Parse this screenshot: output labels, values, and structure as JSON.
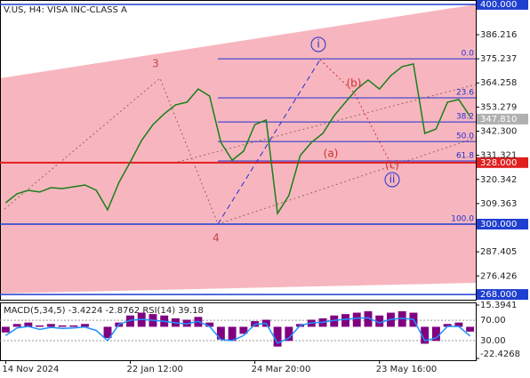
{
  "chart_data": [
    {
      "type": "line",
      "title": "V.US, H4:  VISA INC-CLASS A",
      "categories": [
        "14 Nov 2024",
        null,
        null,
        null,
        null,
        null,
        null,
        null,
        null,
        null,
        null,
        "22 Jan 12:00",
        null,
        null,
        null,
        null,
        null,
        null,
        null,
        null,
        null,
        null,
        "24 Mar 20:00",
        null,
        null,
        null,
        null,
        null,
        null,
        null,
        null,
        null,
        null,
        "23 May 16:00",
        null,
        null,
        null,
        null,
        null,
        null,
        null,
        null
      ],
      "values": [
        309.7,
        313.8,
        315.4,
        314.6,
        316.6,
        316.2,
        317.0,
        317.8,
        315.4,
        306.5,
        319.0,
        328.3,
        338.1,
        345.3,
        350.2,
        354.3,
        355.5,
        361.5,
        358.3,
        337.2,
        329.1,
        333.2,
        345.3,
        347.4,
        304.9,
        313.0,
        331.2,
        337.2,
        341.3,
        349.4,
        355.5,
        361.5,
        365.6,
        361.5,
        367.6,
        371.7,
        372.9,
        341.3,
        343.3,
        355.5,
        356.7,
        349.0
      ],
      "color": "#1a7f1a",
      "ylim": [
        265.6,
        402.0
      ],
      "yticks": [
        386.216,
        375.237,
        364.258,
        353.279,
        {
          "value": 342.3,
          "label": "342.300"
        },
        331.321,
        320.342,
        309.363,
        287.405,
        276.426
      ],
      "levels": [
        {
          "value": 400,
          "label": "400.000",
          "color": "#1f3fd0"
        },
        {
          "value": 328,
          "label": "328.000",
          "color": "#e02020"
        },
        {
          "value": 300,
          "label": "300.000",
          "color": "#1f3fd0"
        },
        {
          "value": 268,
          "label": "268.000",
          "color": "#1f3fd0"
        }
      ],
      "last_price": {
        "value": 347.81,
        "label": "347.810",
        "color": "#b0b0b0"
      },
      "fib_range": [
        300,
        375.237
      ],
      "fib_levels": [
        {
          "value": 0,
          "label": "0.0"
        },
        23.6,
        38.2,
        {
          "value": 50,
          "label": "50.0"
        },
        61.8,
        {
          "value": 100,
          "label": "100.0"
        }
      ],
      "fib_color": "#2030d0",
      "wave_labels": [
        "3",
        "4",
        "i",
        "(a)",
        "(b)",
        "(c)",
        "ii"
      ]
    },
    {
      "type": "macd",
      "title": "MACD(5,34,5) -3.4224 -2.8762 RSI(14) 39.18",
      "ylim": [
        -22.4268,
        15.3941
      ],
      "yticks": [
        15.3941,
        -22.4268
      ],
      "y2lim": [
        -5,
        100
      ],
      "y2ticks": [
        {
          "value": 70,
          "label": "70.00"
        },
        {
          "value": 30,
          "label": "30.00"
        }
      ],
      "series": [
        {
          "color": "#800080",
          "values": [
            -4,
            2,
            3,
            1,
            2,
            1,
            1,
            2,
            0,
            -8,
            3,
            8,
            10,
            9,
            8,
            6,
            5,
            7,
            3,
            -9,
            -10,
            -5,
            4,
            5,
            -14,
            -10,
            2,
            5,
            6,
            8,
            9,
            10,
            11,
            8,
            10,
            11,
            10,
            -12,
            -10,
            2,
            3,
            -3.4224
          ]
        },
        {
          "color": "#1e90ff",
          "axis": "y2",
          "values": [
            40,
            55,
            58,
            52,
            56,
            54,
            55,
            57,
            50,
            30,
            62,
            70,
            72,
            70,
            68,
            65,
            63,
            68,
            58,
            32,
            30,
            40,
            62,
            64,
            25,
            35,
            60,
            65,
            66,
            70,
            72,
            74,
            75,
            65,
            72,
            74,
            72,
            30,
            35,
            58,
            58,
            39.18
          ]
        }
      ]
    }
  ]
}
